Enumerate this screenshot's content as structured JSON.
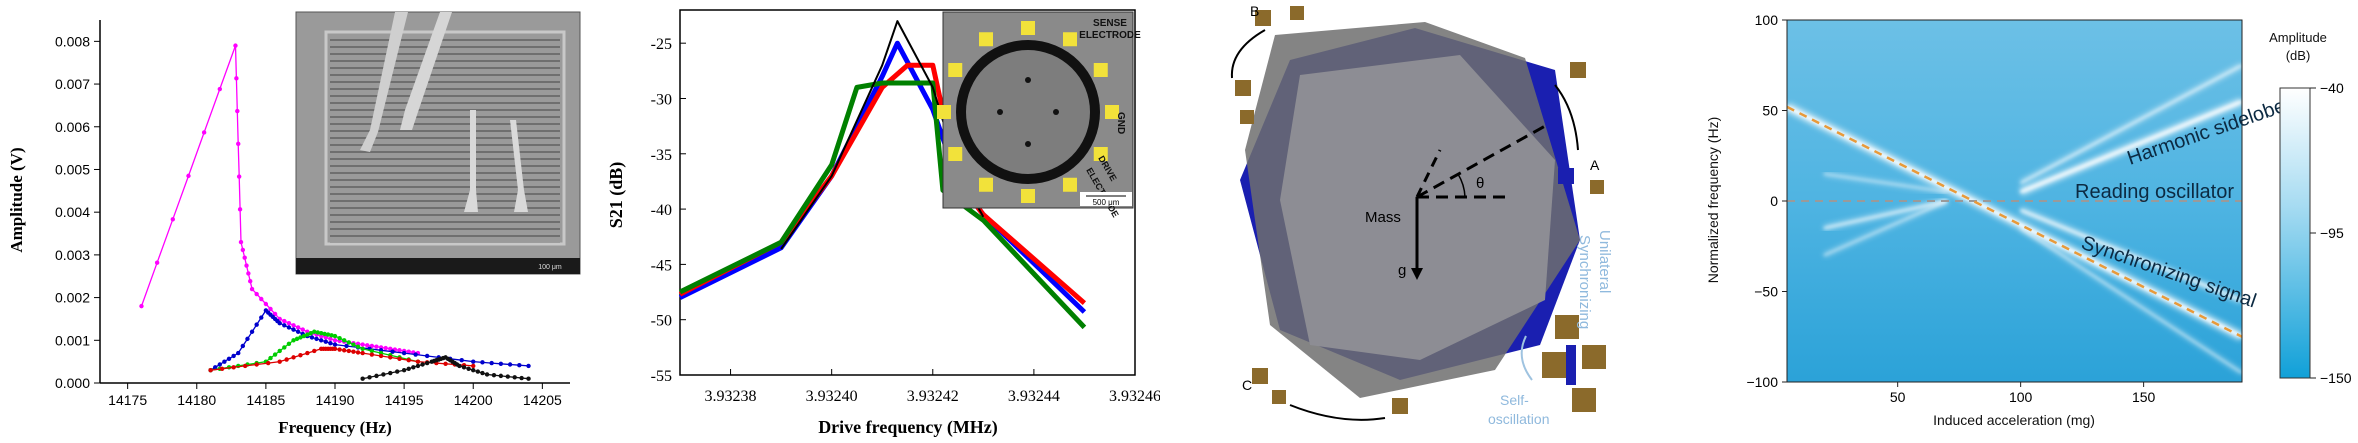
{
  "chart_data": [
    {
      "type": "line",
      "xlabel": "Frequency (Hz)",
      "ylabel": "Amplitude (V)",
      "xlim": [
        14173,
        14207
      ],
      "ylim": [
        0,
        0.0085
      ],
      "xticks": [
        14175,
        14180,
        14185,
        14190,
        14195,
        14200,
        14205
      ],
      "xtick_labels": [
        "14175",
        "14180",
        "14185",
        "14190",
        "14195",
        "14200",
        "14205"
      ],
      "yticks": [
        0,
        0.001,
        0.002,
        0.003,
        0.004,
        0.005,
        0.006,
        0.007,
        0.008
      ],
      "ytick_labels": [
        "0.000",
        "0.001",
        "0.002",
        "0.003",
        "0.004",
        "0.005",
        "0.006",
        "0.007",
        "0.008"
      ],
      "series": [
        {
          "color": "#ff00ff",
          "x": [
            14176,
            14182.8,
            14183.2,
            14184,
            14186,
            14188,
            14190,
            14192,
            14194,
            14196
          ],
          "y": [
            0.0018,
            0.0079,
            0.0033,
            0.0022,
            0.0015,
            0.0012,
            0.001,
            0.0009,
            0.0008,
            0.0007
          ]
        },
        {
          "color": "#0000cc",
          "x": [
            14181,
            14183,
            14185,
            14186,
            14188,
            14190,
            14195,
            14200,
            14204
          ],
          "y": [
            0.0003,
            0.0007,
            0.0017,
            0.0014,
            0.0011,
            0.0009,
            0.0007,
            0.0005,
            0.0004
          ]
        },
        {
          "color": "#00cc00",
          "x": [
            14181,
            14185,
            14187,
            14188.5,
            14190,
            14192,
            14196
          ],
          "y": [
            0.0003,
            0.0005,
            0.001,
            0.0012,
            0.0011,
            0.0008,
            0.0005
          ]
        },
        {
          "color": "#dd0000",
          "x": [
            14181,
            14186,
            14189,
            14190,
            14192,
            14196,
            14200
          ],
          "y": [
            0.0003,
            0.0005,
            0.0008,
            0.0008,
            0.0007,
            0.0005,
            0.0004
          ]
        },
        {
          "color": "#111111",
          "x": [
            14192,
            14195,
            14197,
            14198,
            14199,
            14201,
            14204
          ],
          "y": [
            0.0001,
            0.0003,
            0.0005,
            0.0006,
            0.0004,
            0.0002,
            0.0001
          ]
        }
      ],
      "inset": {
        "type": "image",
        "subject": "SEM micrograph of comb-drive resonator with probes",
        "scale_label": "100 μm"
      }
    },
    {
      "type": "line",
      "xlabel": "Drive frequency (MHz)",
      "ylabel": "S21 (dB)",
      "xlim": [
        3.93237,
        3.93246
      ],
      "ylim": [
        -55,
        -22
      ],
      "xticks": [
        3.93238,
        3.9324,
        3.93242,
        3.93244,
        3.93246
      ],
      "xtick_labels": [
        "3.93238",
        "3.93240",
        "3.93242",
        "3.93244",
        "3.93246"
      ],
      "yticks": [
        -55,
        -50,
        -45,
        -40,
        -35,
        -30,
        -25
      ],
      "ytick_labels": [
        "-55",
        "-50",
        "-45",
        "-40",
        "-35",
        "-30",
        "-25"
      ],
      "series": [
        {
          "color": "#0000ff",
          "x": [
            3.93237,
            3.93239,
            3.9324,
            3.93241,
            3.932413,
            3.93242,
            3.932425,
            3.93243,
            3.93245
          ],
          "y": [
            -48,
            -43.5,
            -37,
            -28,
            -25,
            -31,
            -37.5,
            -40.5,
            -49.3
          ]
        },
        {
          "color": "#ff0000",
          "x": [
            3.93237,
            3.93239,
            3.9324,
            3.93241,
            3.932415,
            3.93242,
            3.932425,
            3.93243,
            3.93245
          ],
          "y": [
            -47.7,
            -43,
            -37,
            -29,
            -27,
            -27,
            -37.5,
            -40.5,
            -48.5
          ]
        },
        {
          "color": "#008000",
          "x": [
            3.93237,
            3.93239,
            3.9324,
            3.932405,
            3.93241,
            3.93242,
            3.932422,
            3.93243,
            3.93245
          ],
          "y": [
            -47.5,
            -43,
            -36,
            -29,
            -28.6,
            -28.6,
            -38.3,
            -41,
            -50.7
          ]
        },
        {
          "color": "#000000",
          "x": [
            3.93239,
            3.9324,
            3.93241,
            3.932413,
            3.93242,
            3.932425,
            3.93243
          ],
          "y": [
            -43.6,
            -37,
            -27,
            -23,
            -29,
            -36.5,
            -40.7
          ]
        }
      ],
      "inset": {
        "type": "image",
        "subject": "Ring resonator with electrodes",
        "labels": [
          "SENSE ELECTRODE",
          "GND",
          "DRIVE ELECTRODE"
        ],
        "scale_label": "500 μm"
      }
    },
    {
      "type": "diagram",
      "labels": [
        "B",
        "A",
        "C",
        "Mass",
        "θ",
        "g",
        "Unilateral Synchronizing",
        "Self-oscillation"
      ]
    },
    {
      "type": "heatmap",
      "xlabel": "Induced acceleration (mg)",
      "ylabel": "Normalized frequency (Hz)",
      "xlim": [
        5,
        190
      ],
      "ylim": [
        -100,
        100
      ],
      "xticks": [
        50,
        100,
        150
      ],
      "yticks": [
        100,
        50,
        0,
        -50,
        -100
      ],
      "ytick_labels": [
        "100",
        "50",
        "0",
        "−50",
        "−100"
      ],
      "annotations": [
        "Harmonic sidelobe",
        "Reading oscillator",
        "Synchronizing signal"
      ],
      "colorbar": {
        "title": "Amplitude (dB)",
        "ticks": [
          -40,
          -95,
          -150
        ],
        "tick_labels": [
          "−40",
          "−95",
          "−150"
        ],
        "colors": [
          "#ffffff",
          "#10a0d8"
        ]
      }
    }
  ]
}
